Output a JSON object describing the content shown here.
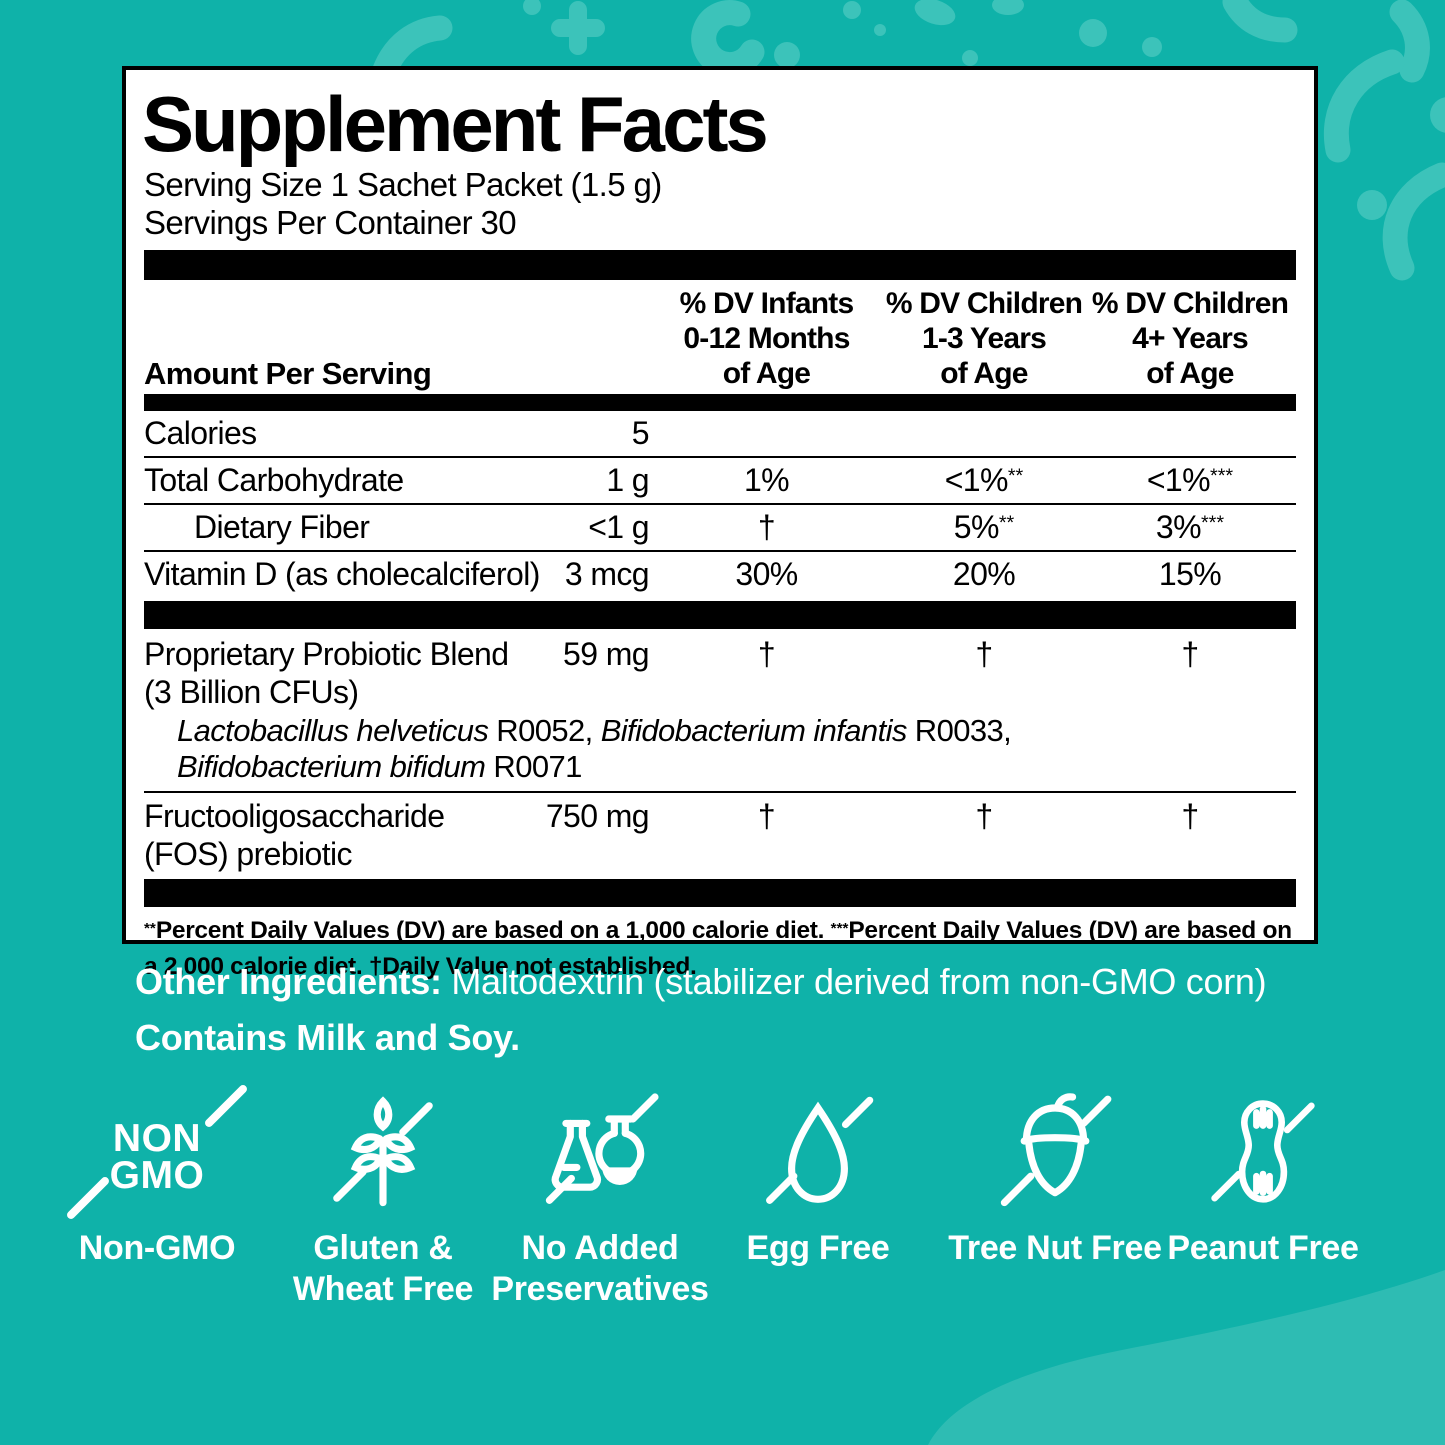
{
  "colors": {
    "background": "#0fb2a9",
    "confetti": "#3cc3ba",
    "swoosh": "#2ebcb3",
    "panel_bg": "#ffffff",
    "panel_text": "#000000",
    "teal_text": "#ffffff"
  },
  "panel": {
    "title": "Supplement Facts",
    "serving_size": "Serving Size 1 Sachet Packet (1.5 g)",
    "servings_per_container": "Servings Per Container 30",
    "header": {
      "amount_label": "Amount Per Serving",
      "columns": [
        {
          "text": "% DV Infants\n0-12  Months\nof Age"
        },
        {
          "text": "% DV Children\n1-3 Years\nof Age"
        },
        {
          "text": "% DV Children\n4+ Years\nof Age"
        }
      ]
    },
    "rows": [
      {
        "name": "Calories",
        "amount": "5",
        "dv": [
          {
            "v": ""
          },
          {
            "v": ""
          },
          {
            "v": ""
          }
        ]
      },
      {
        "name": "Total Carbohydrate",
        "amount": "1 g",
        "dv": [
          {
            "v": "1%"
          },
          {
            "v": "<1%",
            "s": "**"
          },
          {
            "v": "<1%",
            "s": "***"
          }
        ]
      },
      {
        "name": "Dietary Fiber",
        "indent": true,
        "amount": "<1 g",
        "dv": [
          {
            "v": "†"
          },
          {
            "v": "5%",
            "s": "**"
          },
          {
            "v": "3%",
            "s": "***"
          }
        ]
      },
      {
        "name": "Vitamin D (as cholecalciferol)",
        "amount": "3 mcg",
        "dv": [
          {
            "v": "30%"
          },
          {
            "v": "20%"
          },
          {
            "v": "15%"
          }
        ]
      }
    ],
    "blend": {
      "name_line1": "Proprietary Probiotic Blend",
      "name_line2": "(3 Billion CFUs)",
      "amount": "59 mg",
      "dv": [
        "†",
        "†",
        "†"
      ],
      "strain_lines": [
        [
          {
            "i": "Lactobacillus helveticus",
            "p": " R0052, "
          },
          {
            "i": "Bifidobacterium infantis",
            "p": " R0033,"
          }
        ],
        [
          {
            "i": "Bifidobacterium bifidum",
            "p": " R0071"
          }
        ]
      ]
    },
    "fos": {
      "name_line1": "Fructooligosaccharide",
      "name_line2": "(FOS) prebiotic",
      "amount": "750 mg",
      "dv": [
        "†",
        "†",
        "†"
      ]
    },
    "footnote_segments": [
      {
        "s": "**",
        "t": "Percent Daily Values (DV) are based on a 1,000 calorie diet.  "
      },
      {
        "s": "***",
        "t": "Percent Daily Values (DV) are based on a 2,000 calorie diet.  †Daily Value not established."
      }
    ]
  },
  "other": {
    "label": "Other Ingredients:",
    "value": "Maltodextrin (stabilizer derived from non-GMO corn)",
    "contains": "Contains Milk and Soy."
  },
  "badges": [
    {
      "name": "non-gmo",
      "label": "Non-GMO",
      "icon_text": "NON\nGMO"
    },
    {
      "name": "gluten-wheat-free",
      "label": "Gluten &\nWheat Free"
    },
    {
      "name": "no-added-preservatives",
      "label": "No Added\nPreservatives"
    },
    {
      "name": "egg-free",
      "label": "Egg Free"
    },
    {
      "name": "tree-nut-free",
      "label": "Tree Nut Free"
    },
    {
      "name": "peanut-free",
      "label": "Peanut Free"
    }
  ]
}
